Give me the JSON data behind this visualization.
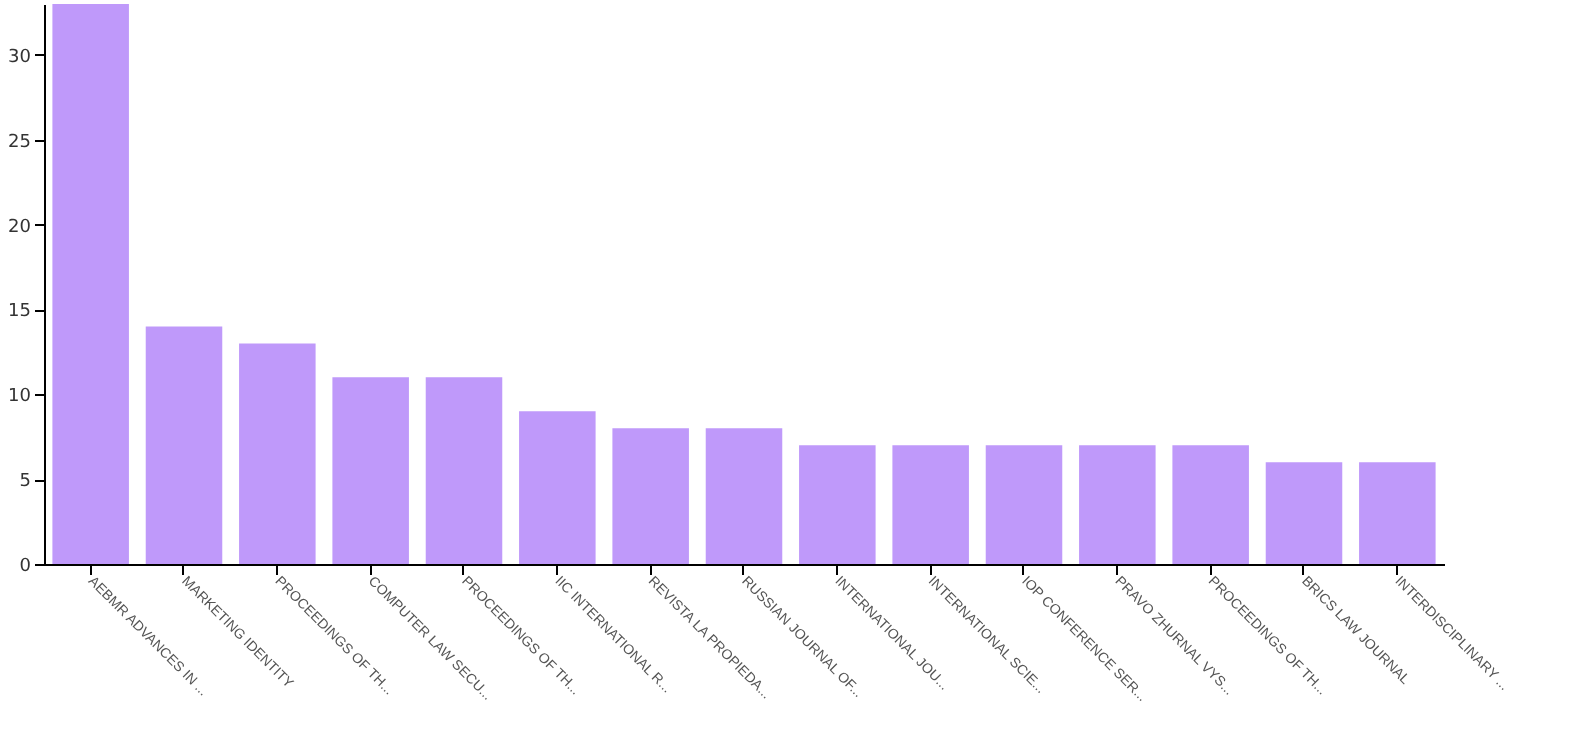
{
  "chart_data": {
    "type": "bar",
    "categories": [
      "AEBMR ADVANCES IN ...",
      "MARKETING IDENTITY",
      "PROCEEDINGS OF TH...",
      "COMPUTER LAW SECU...",
      "PROCEEDINGS OF TH...",
      "IIC INTERNATIONAL R...",
      "REVISTA LA PROPIEDA...",
      "RUSSIAN JOURNAL OF...",
      "INTERNATIONAL JOU...",
      "INTERNATIONAL SCIE...",
      "IOP CONFERENCE SER...",
      "PRAVO ZHURNAL VYS...",
      "PROCEEDINGS OF TH...",
      "BRICS LAW JOURNAL",
      "INTERDISCIPLINARY ..."
    ],
    "values": [
      33,
      14,
      13,
      11,
      11,
      9,
      8,
      8,
      7,
      7,
      7,
      7,
      7,
      6,
      6
    ],
    "color": "#bf99fa",
    "ylim": [
      0,
      33
    ],
    "yticks": [
      0,
      5,
      10,
      15,
      20,
      25,
      30
    ],
    "grid": false
  }
}
